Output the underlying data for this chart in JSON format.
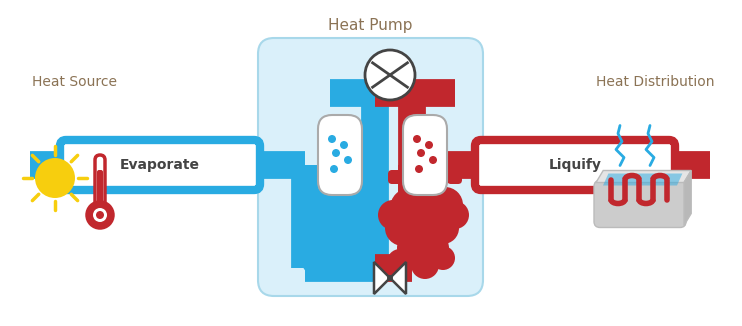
{
  "title": "Heat Pump",
  "label_heat_source": "Heat Source",
  "label_heat_dist": "Heat Distribution",
  "label_evaporate": "Evaporate",
  "label_liquify": "Liquify",
  "color_blue": "#29ABE2",
  "color_red": "#C1272D",
  "color_box_bg": "#DAF0FA",
  "color_box_border": "#A8D8EA",
  "color_text": "#555555",
  "color_title": "#5B6770",
  "color_yellow": "#F7CE0E",
  "color_white": "#FFFFFF",
  "color_gray": "#CCCCCC",
  "color_gray2": "#BBBBBB",
  "color_dark": "#444444",
  "bg_color": "#FFFFFF"
}
